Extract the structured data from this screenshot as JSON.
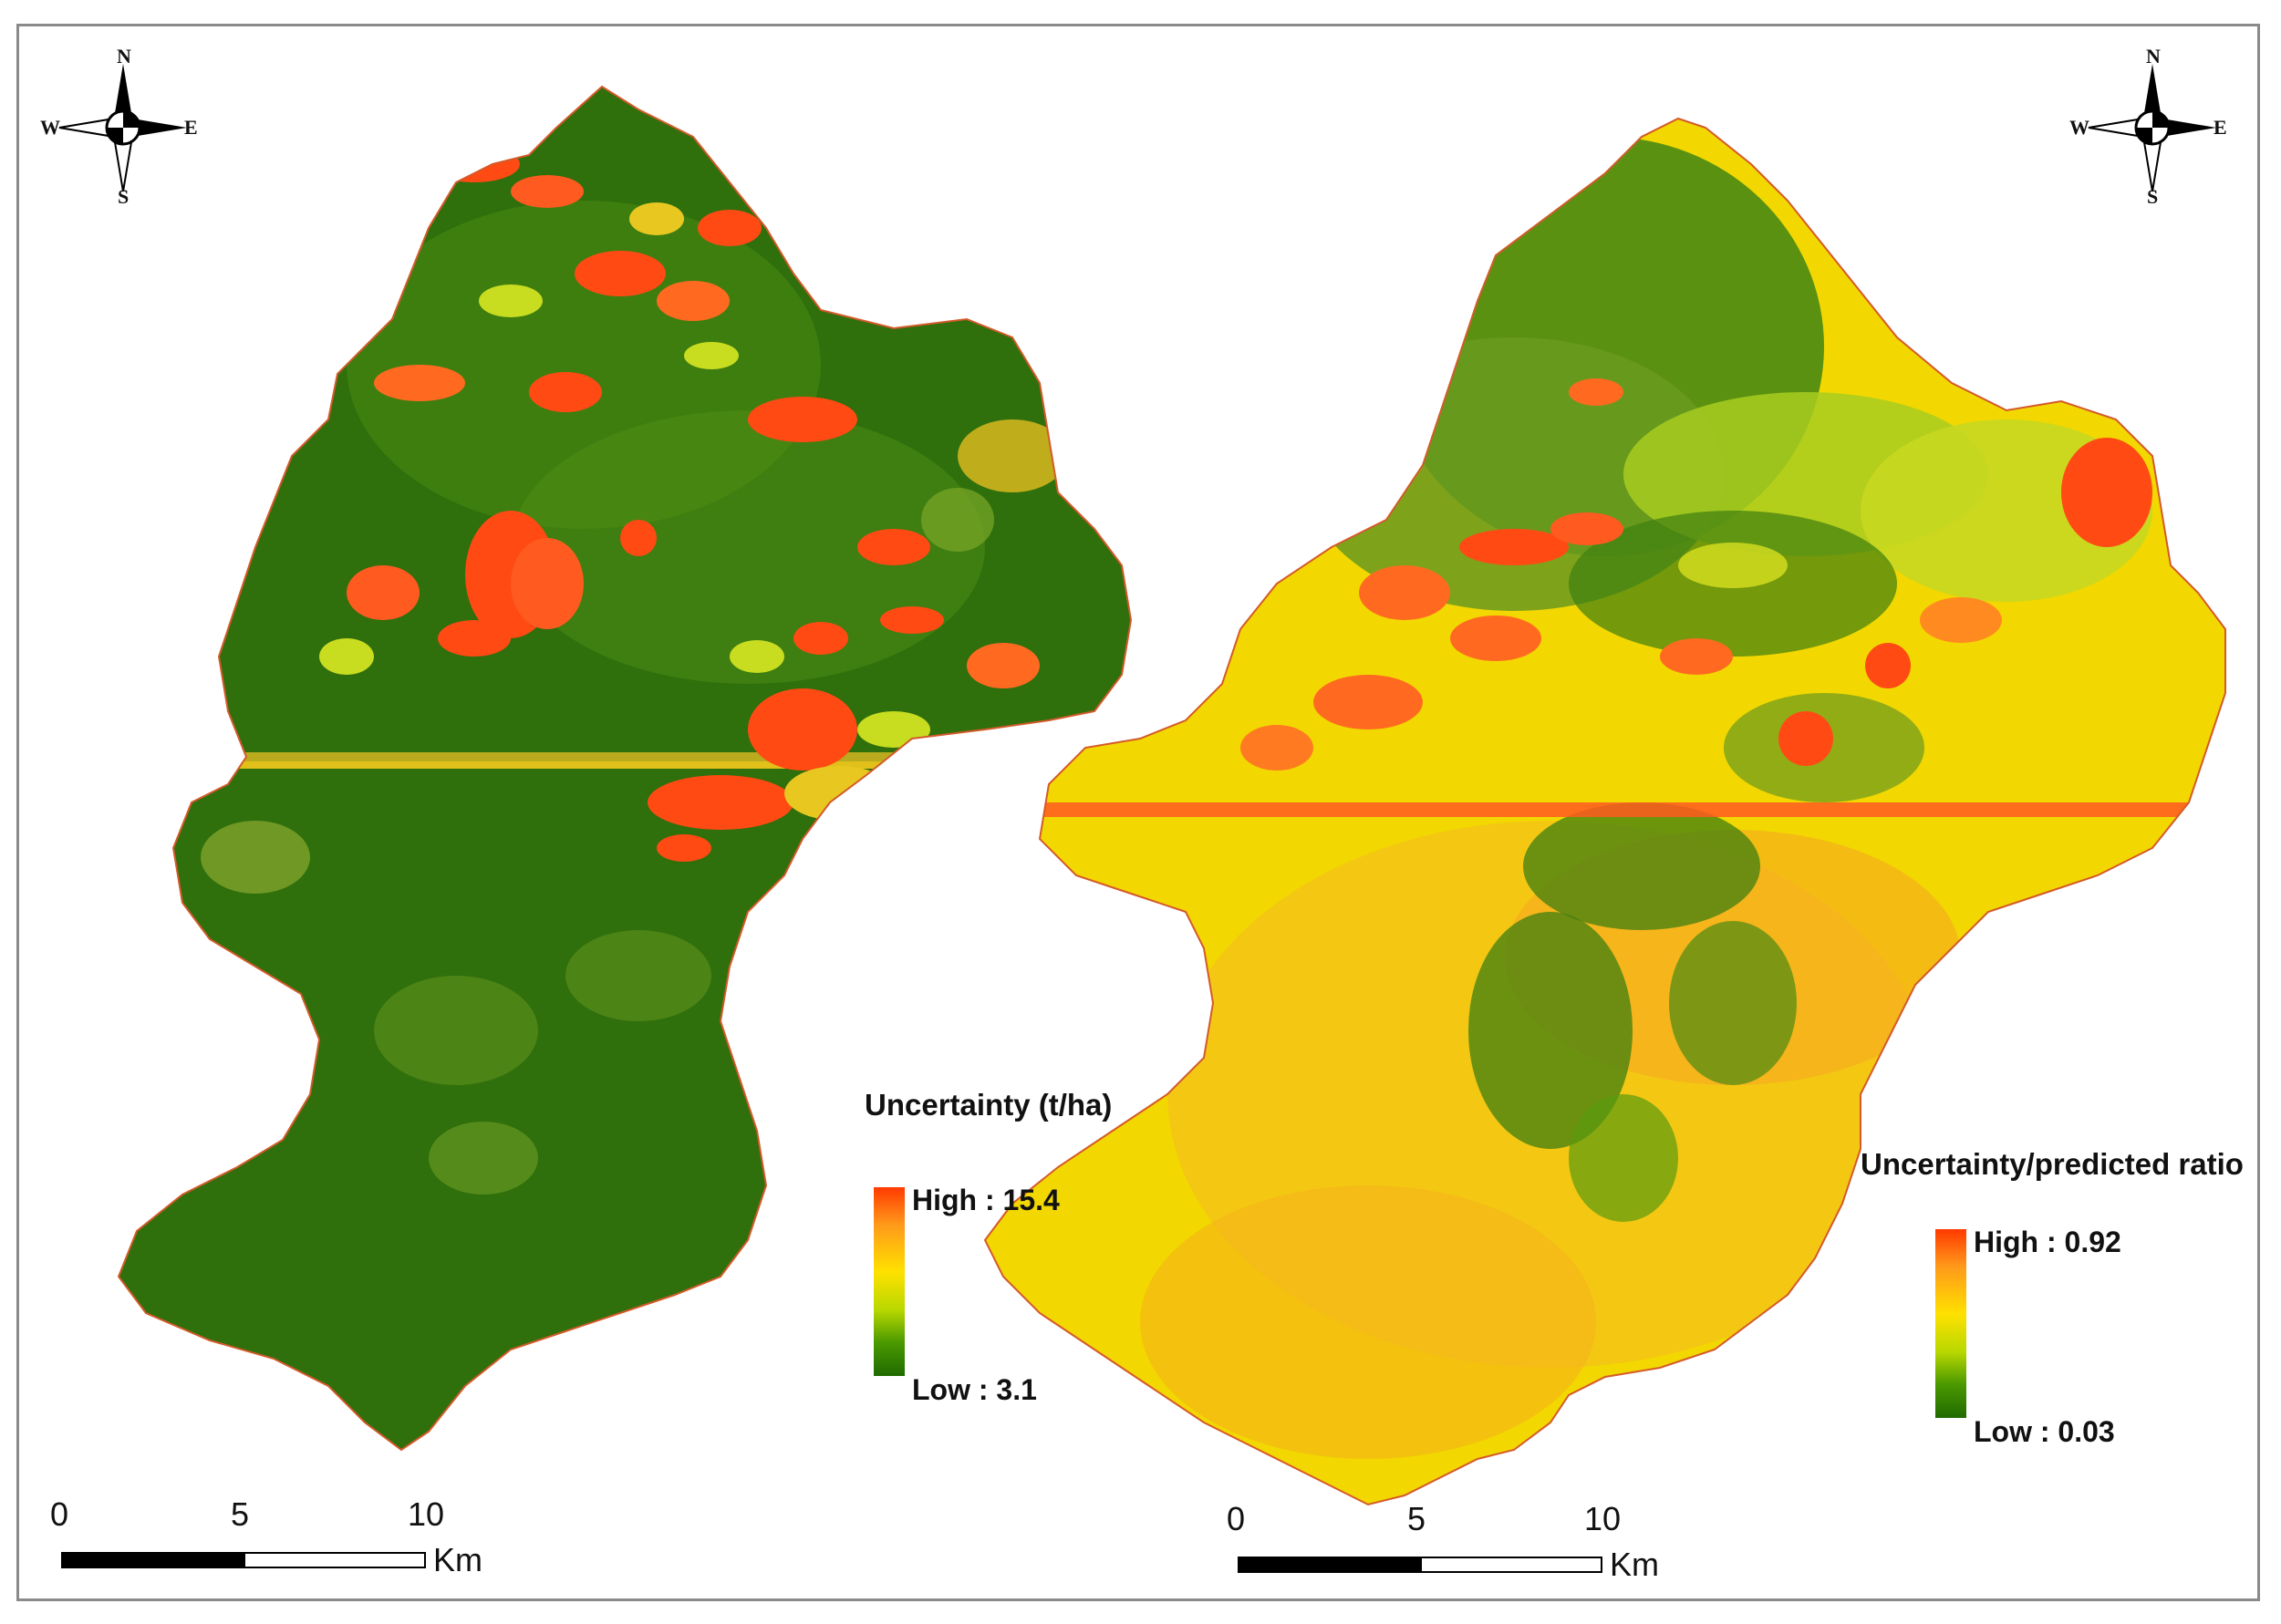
{
  "compass": {
    "north": "N",
    "south": "S",
    "east": "E",
    "west": "W"
  },
  "left_map": {
    "legend_title": "Uncertainty (t/ha)",
    "legend_high": "High : 15.4",
    "legend_low": "Low : 3.1",
    "scale_ticks": [
      "0",
      "5",
      "10"
    ],
    "scale_unit": "Km"
  },
  "right_map": {
    "legend_title": "Uncertainty/predicted ratio",
    "legend_high": "High : 0.92",
    "legend_low": "Low : 0.03",
    "scale_ticks": [
      "0",
      "5",
      "10"
    ],
    "scale_unit": "Km"
  },
  "colors": {
    "dark_green": "#2a6a0a",
    "mid_green": "#5a9a10",
    "yellow_green": "#c8dc20",
    "yellow": "#f2e200",
    "orange": "#f5a623",
    "red_orange": "#ff4a14",
    "boundary": "#d35a2a"
  }
}
